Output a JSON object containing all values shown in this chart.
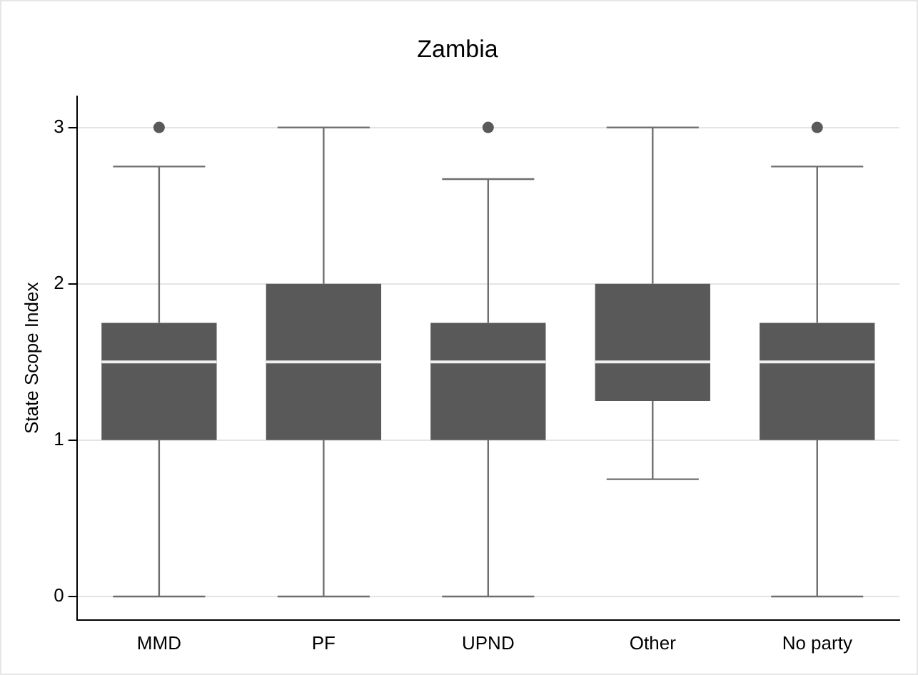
{
  "chart_data": {
    "type": "box",
    "title": "Zambia",
    "ylabel": "State Scope Index",
    "categories": [
      "MMD",
      "PF",
      "UPND",
      "Other",
      "No party"
    ],
    "color": "#595959",
    "ylim": [
      -0.15,
      3.2
    ],
    "yticks": [
      0,
      1,
      2,
      3
    ],
    "grid": "y",
    "legend": false,
    "boxes": [
      {
        "low": 0,
        "q1": 1,
        "median": 1.5,
        "q3": 1.75,
        "high": 2.75,
        "outliers": [
          3
        ]
      },
      {
        "low": 0,
        "q1": 1,
        "median": 1.5,
        "q3": 2,
        "high": 3
      },
      {
        "low": 0,
        "q1": 1,
        "median": 1.5,
        "q3": 1.75,
        "high": 2.67,
        "outliers": [
          3
        ]
      },
      {
        "low": 0.75,
        "q1": 1.25,
        "median": 1.5,
        "q3": 2,
        "high": 3
      },
      {
        "low": 0,
        "q1": 1,
        "median": 1.5,
        "q3": 1.75,
        "high": 2.75,
        "outliers": [
          3
        ]
      }
    ]
  }
}
